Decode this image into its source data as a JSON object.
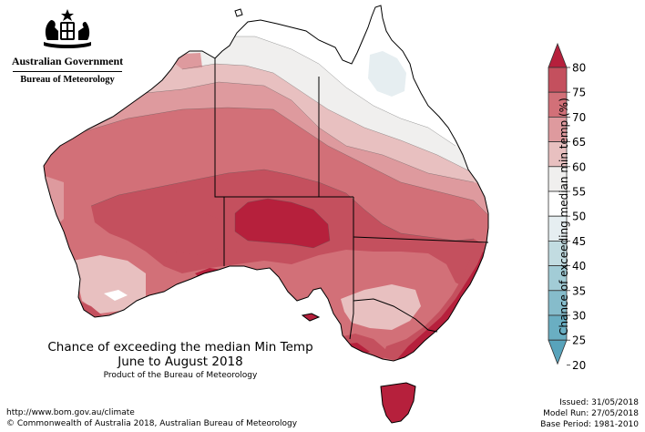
{
  "header": {
    "crest_icon": "commonwealth-coat-of-arms-icon",
    "gov_line1": "Australian Government",
    "gov_line2": "Bureau of Meteorology"
  },
  "map": {
    "title_line1": "Chance of exceeding the median Min Temp",
    "title_line2": "June to August 2018",
    "title_line3": "Product of the Bureau of Meteorology",
    "region": "Australia"
  },
  "legend": {
    "title": "Chance of exceeding median min temp (%)",
    "ticks": [
      "80",
      "75",
      "70",
      "65",
      "60",
      "55",
      "50",
      "45",
      "40",
      "35",
      "30",
      "25",
      "20"
    ],
    "colors": [
      "#b6203c",
      "#c4505e",
      "#d27078",
      "#de9a9e",
      "#e8c0c0",
      "#f0efee",
      "#ffffff",
      "#e6eef1",
      "#c2dce1",
      "#a2ccd6",
      "#86bccb",
      "#6aaec2",
      "#58a3bb"
    ]
  },
  "footer": {
    "url": "http://www.bom.gov.au/climate",
    "copyright": "© Commonwealth of Australia 2018, Australian Bureau of Meteorology",
    "issued": "Issued: 31/05/2018",
    "model_run": "Model Run: 27/05/2018",
    "base_period": "Base Period: 1981-2010"
  }
}
